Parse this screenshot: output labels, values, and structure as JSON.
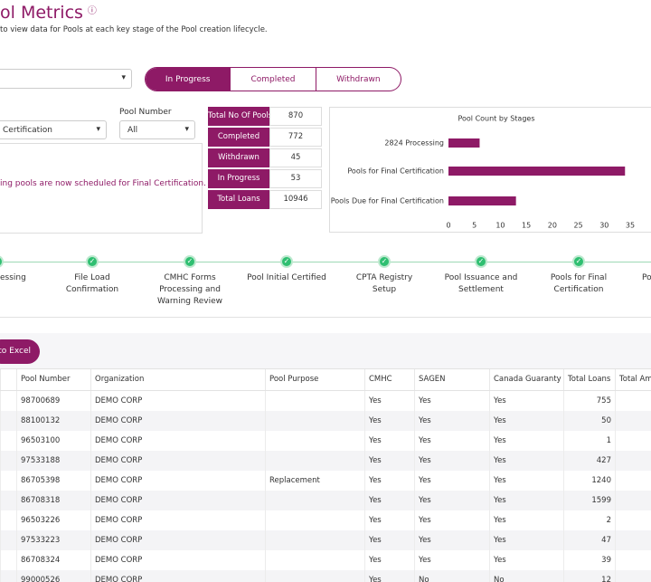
{
  "header": {
    "title": "ol Metrics",
    "subtitle": "to view data for Pools at each key stage of the Pool creation lifecycle."
  },
  "tabs": [
    "In Progress",
    "Completed",
    "Withdrawn"
  ],
  "filters": {
    "stage": "Certification",
    "pool_number_label": "Pool Number",
    "pool_number": "All"
  },
  "message": "ing pools are now scheduled for Final Certification.",
  "summary": [
    [
      "Total No Of Pools",
      870
    ],
    [
      "Completed",
      772
    ],
    [
      "Withdrawn",
      45
    ],
    [
      "In Progress",
      53
    ],
    [
      "Total Loans",
      10946
    ]
  ],
  "chart": {
    "type": "bar",
    "orientation": "horizontal",
    "title": "Pool Count by Stages",
    "categories": [
      "2824 Processing",
      "Pools for Final Certification",
      "Pools Due for Final Certification"
    ],
    "values": [
      6,
      34,
      13
    ],
    "color": "#8e1a66",
    "xlim": [
      0,
      35
    ],
    "xticks": [
      0,
      5,
      10,
      15,
      20,
      25,
      30,
      35
    ]
  },
  "steps": [
    "essing",
    "File Load Confirmation",
    "CMHC Forms Processing and Warning Review",
    "Pool Initial Certified",
    "CPTA Registry Setup",
    "Pool Issuance and Settlement",
    "Pools for Final Certification",
    "Po"
  ],
  "export_button": "to Excel",
  "table": {
    "columns": [
      "Pool Number",
      "Organization",
      "Pool Purpose",
      "CMHC",
      "SAGEN",
      "Canada Guaranty",
      "Total Loans",
      "Total Am"
    ],
    "rows": [
      [
        "98700689",
        "DEMO CORP",
        null,
        "Yes",
        "Yes",
        "Yes",
        755
      ],
      [
        "88100132",
        "DEMO CORP",
        null,
        "Yes",
        "Yes",
        "Yes",
        50
      ],
      [
        "96503100",
        "DEMO CORP",
        null,
        "Yes",
        "Yes",
        "Yes",
        1
      ],
      [
        "97533188",
        "DEMO CORP",
        null,
        "Yes",
        "Yes",
        "Yes",
        427
      ],
      [
        "86705398",
        "DEMO CORP",
        "Replacement",
        "Yes",
        "Yes",
        "Yes",
        1240
      ],
      [
        "86708318",
        "DEMO CORP",
        null,
        "Yes",
        "Yes",
        "Yes",
        1599
      ],
      [
        "96503226",
        "DEMO CORP",
        null,
        "Yes",
        "Yes",
        "Yes",
        2
      ],
      [
        "97533223",
        "DEMO CORP",
        null,
        "Yes",
        "Yes",
        "Yes",
        47
      ],
      [
        "86708324",
        "DEMO CORP",
        null,
        "Yes",
        "Yes",
        "Yes",
        39
      ],
      [
        "99000526",
        "DEMO CORP",
        null,
        "Yes",
        "No",
        "No",
        12
      ]
    ]
  }
}
